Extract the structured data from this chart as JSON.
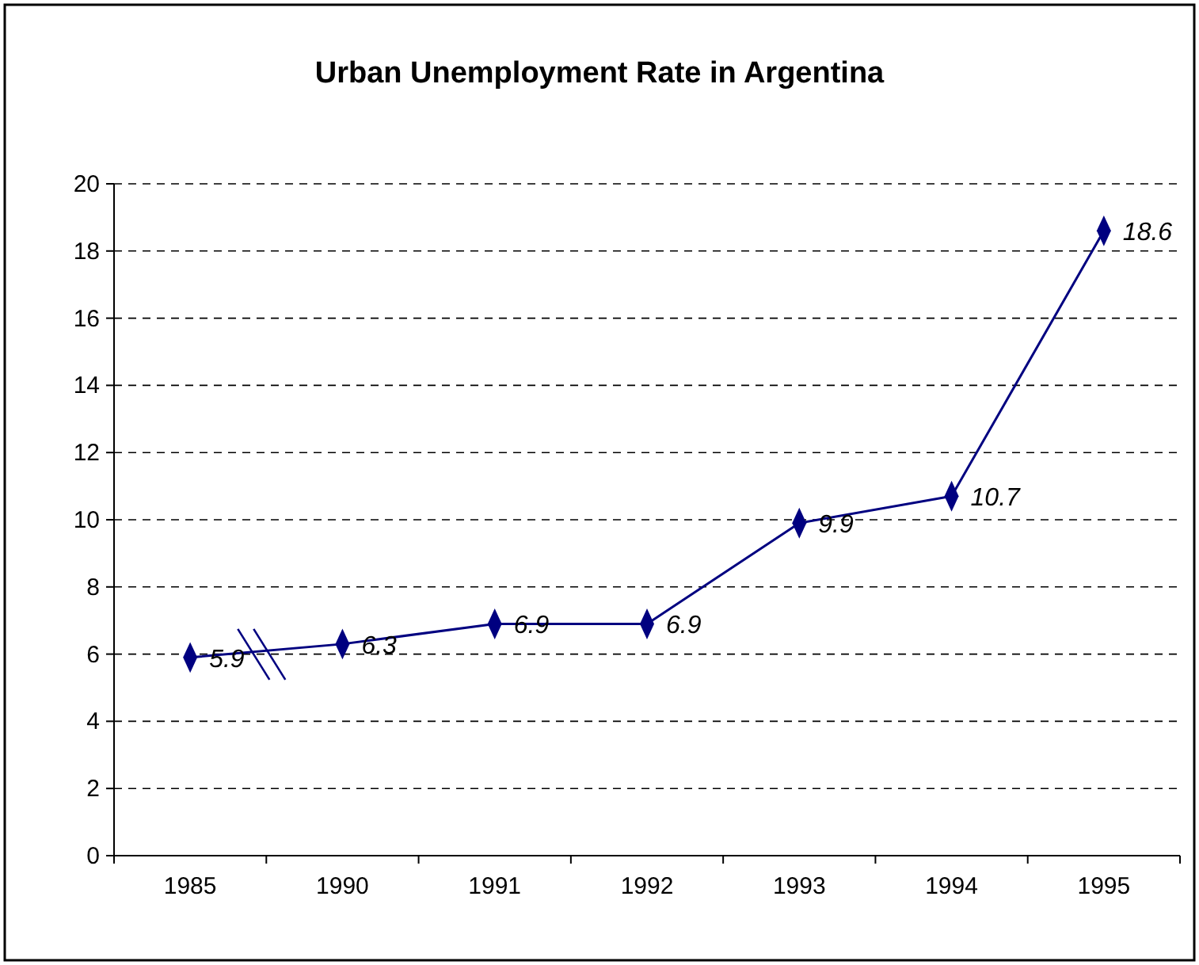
{
  "chart_data": {
    "type": "line",
    "title": "Urban Unemployment Rate in Argentina",
    "categories": [
      "1985",
      "1990",
      "1991",
      "1992",
      "1993",
      "1994",
      "1995"
    ],
    "series": [
      {
        "color": "#000080",
        "values": [
          5.9,
          6.3,
          6.9,
          6.9,
          9.9,
          10.7,
          18.6
        ]
      }
    ],
    "ylim": [
      0,
      20
    ],
    "yticks": [
      0,
      2,
      4,
      6,
      8,
      10,
      12,
      14,
      16,
      18,
      20
    ],
    "grid": "y",
    "marker": "diamond",
    "line_style": "solid",
    "data_labels": true
  }
}
